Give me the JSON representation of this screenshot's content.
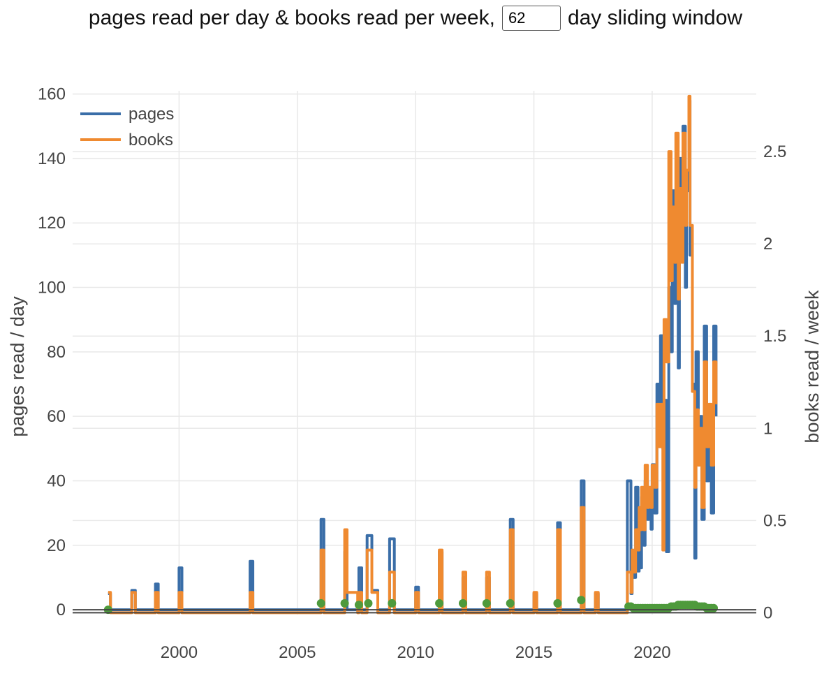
{
  "header": {
    "title_prefix": "pages read per day & books read per week,",
    "window_value": "62",
    "title_suffix": "day sliding window"
  },
  "chart_data": {
    "type": "line",
    "xlabel": "",
    "ylabel": "pages read / day",
    "y2label": "books read / week",
    "xlim": [
      1995.5,
      2024.4
    ],
    "ylim": [
      -1.5,
      161
    ],
    "y2lim": [
      -0.01,
      2.83
    ],
    "x_ticks": [
      2000,
      2005,
      2010,
      2015,
      2020
    ],
    "y_ticks": [
      0,
      20,
      40,
      60,
      80,
      100,
      120,
      140,
      160
    ],
    "y2_ticks": [
      "0",
      "0.5",
      "1",
      "1.5",
      "2",
      "2.5"
    ],
    "y2_tick_values": [
      0,
      0.5,
      1,
      1.5,
      2,
      2.5
    ],
    "legend": {
      "position": "top-left",
      "entries": [
        "pages",
        "books"
      ]
    },
    "grid": true,
    "series": [
      {
        "name": "pages",
        "color": "#3a6ea8",
        "axis": "left",
        "shape": "step",
        "x": [
          1997.0,
          1997.05,
          1997.1,
          1997.95,
          1998.0,
          1998.15,
          1998.95,
          1999.0,
          1999.12,
          1999.95,
          2000.0,
          2000.12,
          2002.95,
          2003.0,
          2003.12,
          2005.95,
          2006.0,
          2006.12,
          2006.95,
          2007.0,
          2007.1,
          2007.55,
          2007.6,
          2007.72,
          2007.9,
          2007.95,
          2008.15,
          2008.3,
          2008.4,
          2008.85,
          2008.9,
          2009.1,
          2009.95,
          2010.0,
          2010.12,
          2010.95,
          2011.0,
          2011.12,
          2011.95,
          2012.0,
          2012.12,
          2012.95,
          2013.0,
          2013.12,
          2013.95,
          2014.0,
          2014.12,
          2014.95,
          2015.0,
          2015.12,
          2015.95,
          2016.0,
          2016.12,
          2016.95,
          2017.0,
          2017.12,
          2017.55,
          2017.6,
          2017.72,
          2018.9,
          2018.95,
          2019.0,
          2019.1,
          2019.15,
          2019.2,
          2019.3,
          2019.4,
          2019.45,
          2019.5,
          2019.55,
          2019.65,
          2019.7,
          2019.8,
          2019.85,
          2019.95,
          2020.0,
          2020.1,
          2020.2,
          2020.3,
          2020.35,
          2020.45,
          2020.5,
          2020.6,
          2020.7,
          2020.8,
          2020.85,
          2020.95,
          2021.0,
          2021.1,
          2021.15,
          2021.25,
          2021.3,
          2021.4,
          2021.45,
          2021.55,
          2021.6,
          2021.7,
          2021.8,
          2021.85,
          2021.95,
          2022.0,
          2022.1,
          2022.2,
          2022.3,
          2022.4,
          2022.5,
          2022.6,
          2022.7
        ],
        "y": [
          5,
          5,
          0,
          0,
          6,
          0,
          0,
          8,
          0,
          0,
          13,
          0,
          0,
          15,
          0,
          0,
          28,
          0,
          0,
          18,
          0,
          0,
          13,
          0,
          0,
          23,
          6,
          6,
          0,
          0,
          22,
          0,
          0,
          7,
          0,
          0,
          18,
          0,
          0,
          10,
          0,
          0,
          10,
          0,
          0,
          28,
          0,
          0,
          5,
          0,
          0,
          27,
          0,
          0,
          40,
          0,
          0,
          5,
          0,
          0,
          40,
          40,
          5,
          18,
          10,
          38,
          12,
          30,
          13,
          35,
          20,
          40,
          28,
          35,
          25,
          45,
          30,
          70,
          55,
          85,
          50,
          65,
          18,
          100,
          80,
          130,
          95,
          120,
          75,
          140,
          110,
          150,
          100,
          130,
          158,
          110,
          70,
          16,
          80,
          45,
          60,
          28,
          88,
          40,
          55,
          30,
          88,
          60
        ]
      },
      {
        "name": "books",
        "color": "#ef8a30",
        "axis": "right",
        "shape": "step",
        "x": [
          1997.0,
          1997.05,
          1997.1,
          1997.95,
          1998.0,
          1998.15,
          1998.95,
          1999.0,
          1999.12,
          1999.95,
          2000.0,
          2000.12,
          2002.95,
          2003.0,
          2003.12,
          2005.95,
          2006.0,
          2006.12,
          2006.95,
          2007.0,
          2007.1,
          2007.55,
          2007.6,
          2007.72,
          2007.9,
          2007.95,
          2008.15,
          2008.3,
          2008.4,
          2008.85,
          2008.9,
          2009.1,
          2009.95,
          2010.0,
          2010.12,
          2010.95,
          2011.0,
          2011.12,
          2011.95,
          2012.0,
          2012.12,
          2012.95,
          2013.0,
          2013.12,
          2013.95,
          2014.0,
          2014.12,
          2014.95,
          2015.0,
          2015.12,
          2015.95,
          2016.0,
          2016.12,
          2016.95,
          2017.0,
          2017.12,
          2017.55,
          2017.6,
          2017.72,
          2018.9,
          2018.95,
          2019.0,
          2019.1,
          2019.15,
          2019.2,
          2019.3,
          2019.4,
          2019.45,
          2019.5,
          2019.55,
          2019.65,
          2019.7,
          2019.8,
          2019.85,
          2019.95,
          2020.0,
          2020.1,
          2020.2,
          2020.3,
          2020.35,
          2020.45,
          2020.5,
          2020.6,
          2020.7,
          2020.8,
          2020.85,
          2020.95,
          2021.0,
          2021.1,
          2021.15,
          2021.25,
          2021.3,
          2021.4,
          2021.45,
          2021.55,
          2021.6,
          2021.7,
          2021.8,
          2021.85,
          2021.95,
          2022.0,
          2022.1,
          2022.2,
          2022.3,
          2022.4,
          2022.5,
          2022.6,
          2022.7
        ],
        "y": [
          0.11,
          0.11,
          0,
          0,
          0.11,
          0,
          0,
          0.11,
          0,
          0,
          0.11,
          0,
          0,
          0.11,
          0,
          0,
          0.34,
          0,
          0,
          0.45,
          0.11,
          0,
          0.11,
          0,
          0,
          0.34,
          0.11,
          0.11,
          0,
          0,
          0.22,
          0,
          0,
          0.11,
          0,
          0,
          0.34,
          0,
          0,
          0.22,
          0,
          0,
          0.22,
          0,
          0,
          0.45,
          0,
          0,
          0.11,
          0,
          0,
          0.45,
          0,
          0,
          0.57,
          0,
          0,
          0.11,
          0,
          0,
          0.22,
          0.22,
          0.11,
          0.34,
          0.22,
          0.45,
          0.34,
          0.57,
          0.45,
          0.68,
          0.45,
          0.8,
          0.57,
          0.68,
          0.57,
          0.8,
          0.68,
          1.13,
          0.9,
          1.13,
          0.34,
          1.59,
          1.36,
          2.5,
          1.8,
          2.2,
          1.9,
          2.6,
          1.7,
          2.3,
          1.9,
          2.6,
          2.1,
          2.4,
          2.8,
          2.1,
          1.2,
          0.68,
          1.1,
          0.8,
          1.0,
          0.57,
          1.36,
          0.9,
          1.13,
          0.8,
          1.36,
          1.13
        ]
      },
      {
        "name": "",
        "color": "#4e9a3c",
        "axis": "left",
        "shape": "markers",
        "x": [
          1997.0,
          2006.0,
          2007.0,
          2007.6,
          2008.0,
          2009.0,
          2011.0,
          2012.0,
          2013.0,
          2014.0,
          2016.0,
          2017.0,
          2019.0,
          2019.1,
          2019.2,
          2019.3,
          2019.4,
          2019.5,
          2019.6,
          2019.7,
          2019.8,
          2019.9,
          2020.0,
          2020.1,
          2020.2,
          2020.3,
          2020.4,
          2020.5,
          2020.6,
          2020.7,
          2020.8,
          2020.9,
          2021.0,
          2021.1,
          2021.2,
          2021.3,
          2021.4,
          2021.5,
          2021.6,
          2021.7,
          2021.8,
          2021.9,
          2022.0,
          2022.1,
          2022.2,
          2022.3,
          2022.4,
          2022.5,
          2022.6
        ],
        "y": [
          0,
          2,
          2,
          1.5,
          2,
          2,
          2,
          2,
          2,
          2,
          2,
          3,
          1,
          1,
          0.5,
          0.5,
          0.5,
          0.5,
          0.5,
          0.5,
          0.5,
          0.5,
          0.5,
          0.5,
          0.5,
          0.5,
          0.5,
          0.5,
          0.5,
          0.5,
          1,
          1,
          1,
          1.5,
          1.5,
          1.5,
          1.5,
          1.5,
          1.5,
          1.5,
          1.5,
          1,
          1,
          1,
          1,
          0.5,
          0.5,
          0.5,
          0.5
        ]
      }
    ]
  }
}
